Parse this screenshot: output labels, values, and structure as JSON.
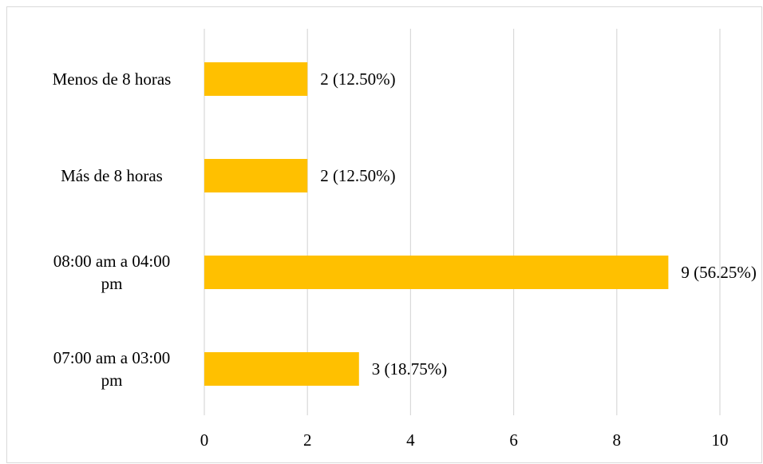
{
  "chart_data": {
    "type": "bar",
    "orientation": "horizontal",
    "categories": [
      "Menos de 8 horas",
      "Más de 8 horas",
      "08:00 am a 04:00 pm",
      "07:00 am a 03:00 pm"
    ],
    "category_label_lines": [
      [
        "Menos de 8 horas"
      ],
      [
        "Más de 8 horas"
      ],
      [
        "08:00 am a 04:00",
        "pm"
      ],
      [
        "07:00 am a 03:00",
        "pm"
      ]
    ],
    "values": [
      2,
      2,
      9,
      3
    ],
    "data_labels": [
      "2 (12.50%)",
      "2 (12.50%)",
      "9 (56.25%)",
      "3 (18.75%)"
    ],
    "xlim": [
      0,
      10
    ],
    "x_ticks": [
      0,
      2,
      4,
      6,
      8,
      10
    ],
    "title": "",
    "xlabel": "",
    "ylabel": "",
    "grid": "vertical",
    "legend": "none",
    "colors": {
      "bar": "#FFC000",
      "grid": "#d9d9d9",
      "border": "#d9d9d9",
      "text": "#000000"
    }
  }
}
